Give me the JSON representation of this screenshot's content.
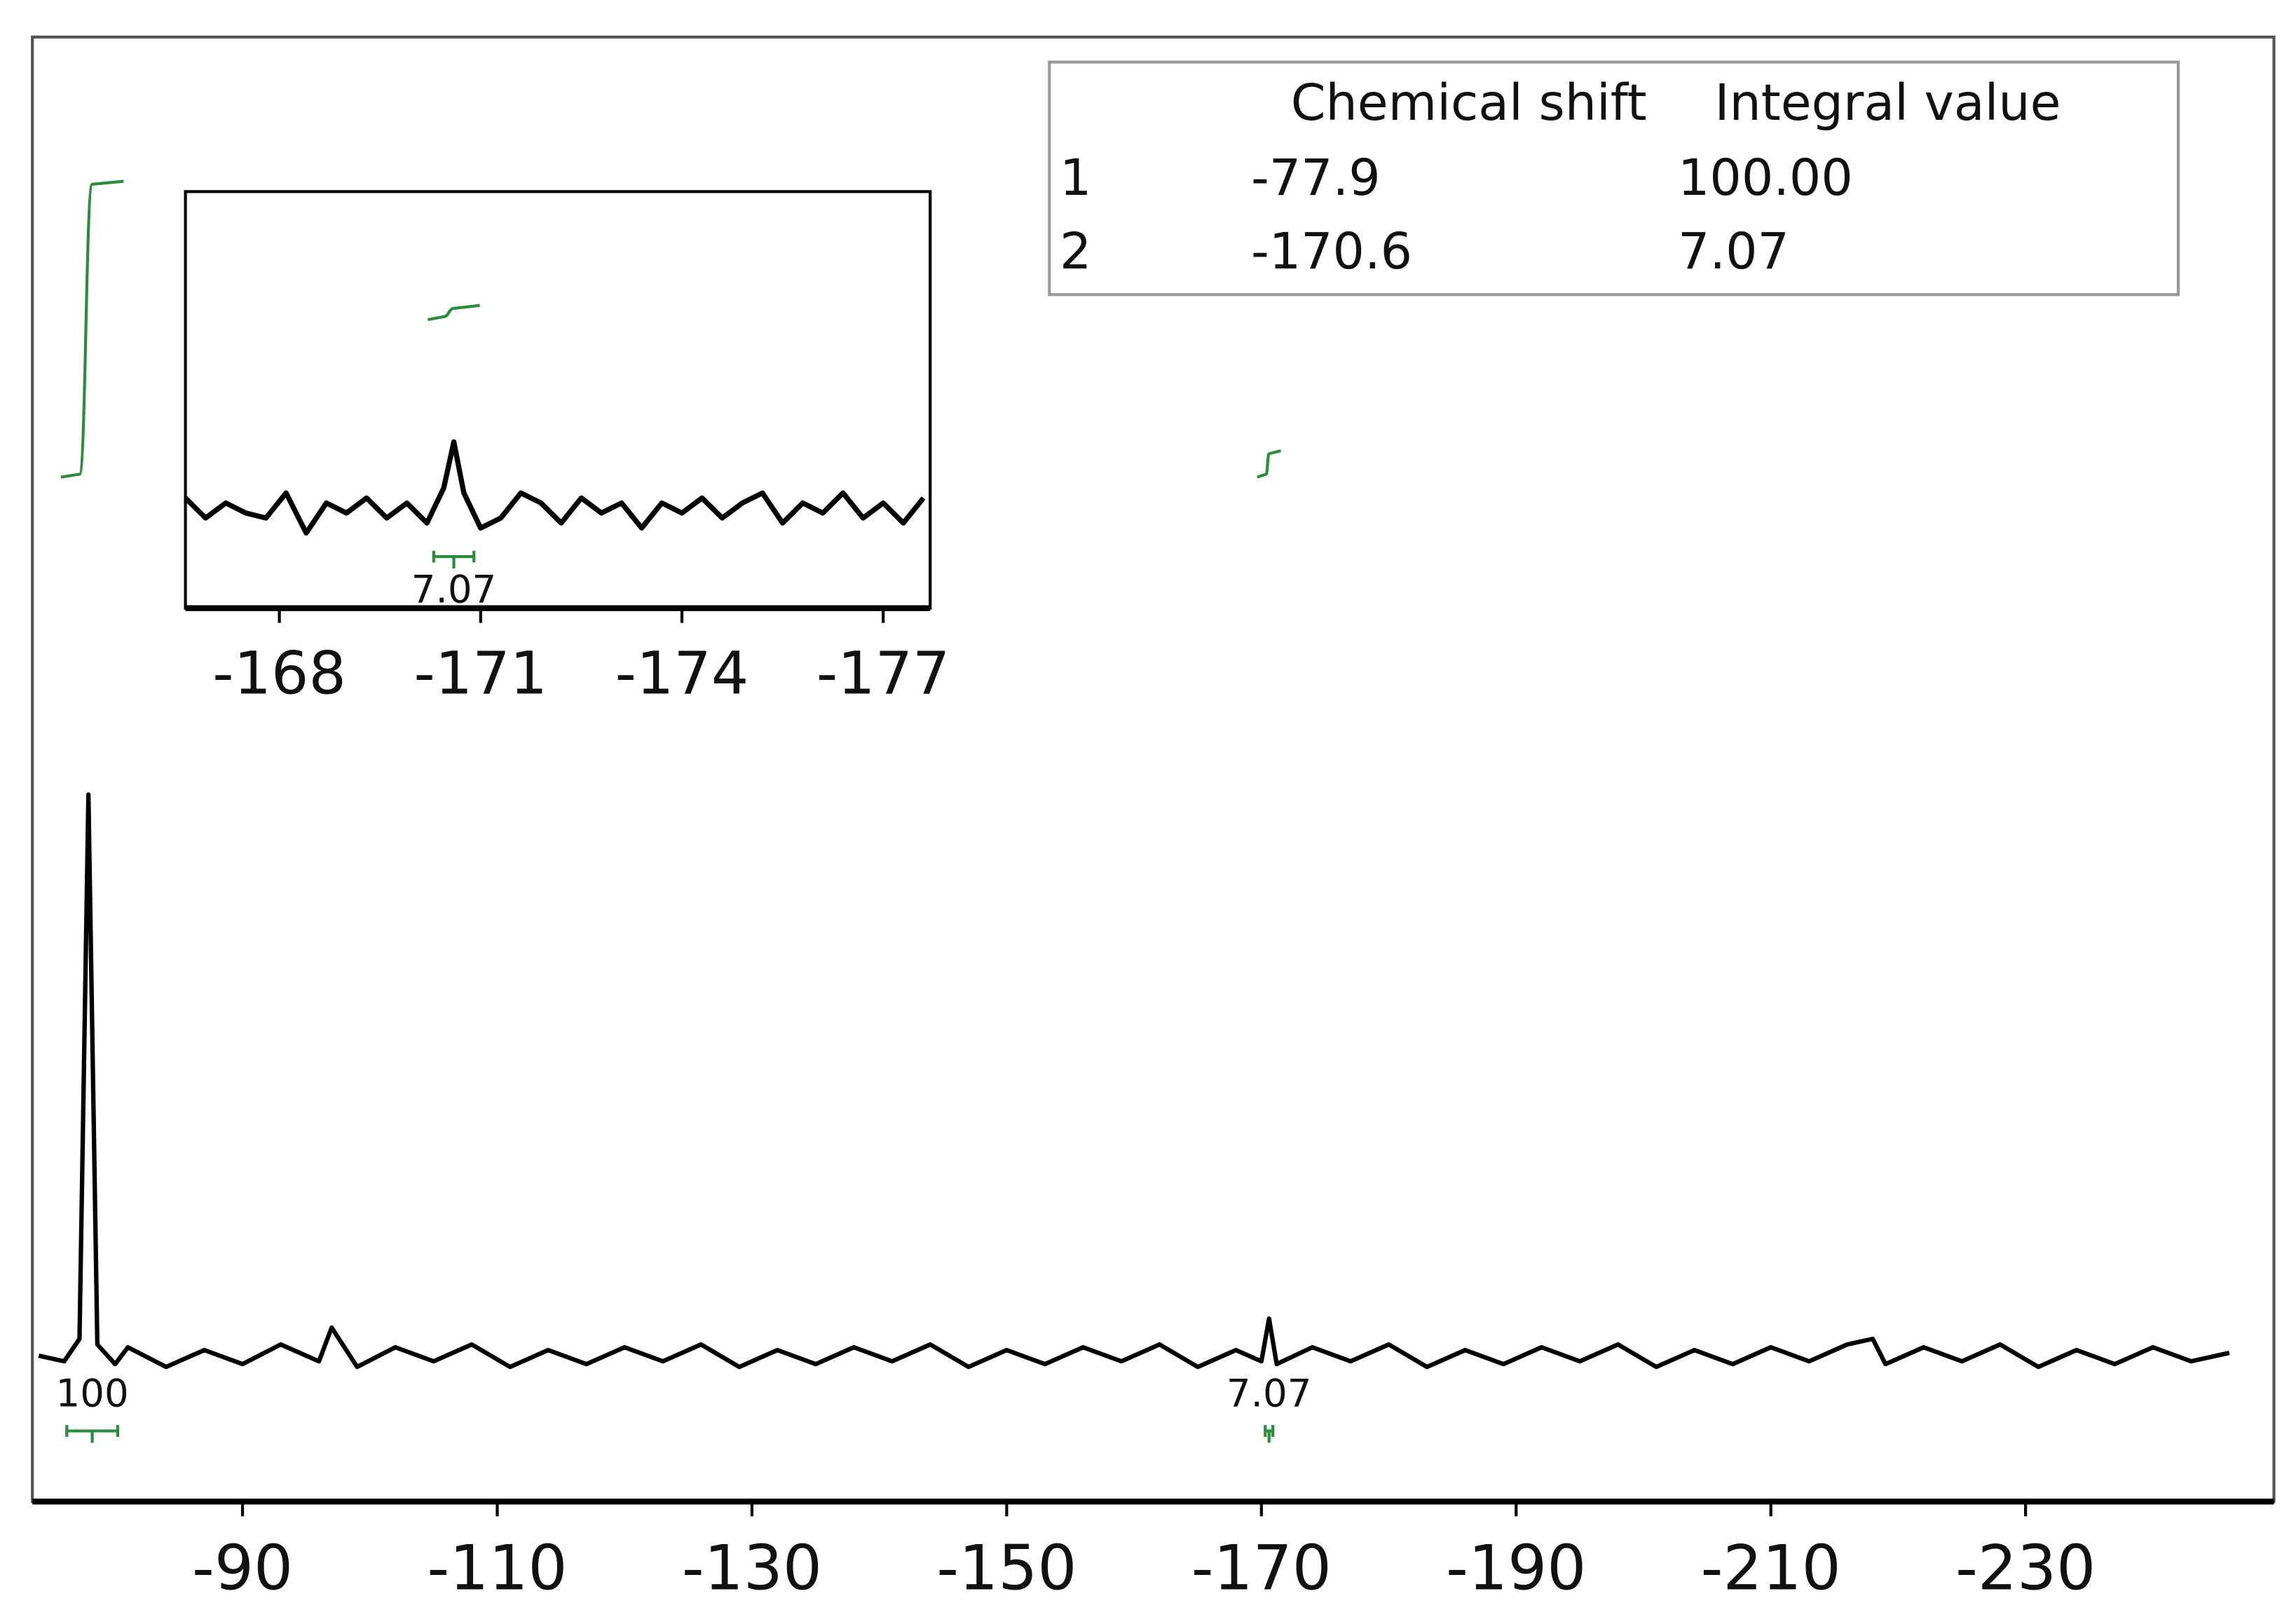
{
  "table": {
    "headers": [
      "Chemical shift",
      "Integral value"
    ],
    "rows": [
      [
        "1",
        "-77.9",
        "100.00"
      ],
      [
        "2",
        "-170.6",
        "7.07"
      ]
    ]
  },
  "chart_data": [
    {
      "type": "line",
      "color": "#000000",
      "xlim": [
        -73.5,
        -249.5
      ],
      "ylim": [
        -26,
        235
      ],
      "xticks": [
        -90,
        -110,
        -130,
        -150,
        -170,
        -190,
        -210,
        -230
      ],
      "x": [
        -74,
        -76,
        -77.2,
        -77.9,
        -78.6,
        -80,
        -81,
        -84,
        -87,
        -90,
        -93,
        -96,
        -97,
        -99,
        -102,
        -105,
        -108,
        -111,
        -114,
        -117,
        -120,
        -123,
        -126,
        -129,
        -132,
        -135,
        -138,
        -141,
        -144,
        -147,
        -150,
        -153,
        -156,
        -159,
        -162,
        -165,
        -168,
        -170,
        -170.6,
        -171.2,
        -174,
        -177,
        -180,
        -183,
        -186,
        -189,
        -192,
        -195,
        -198,
        -201,
        -204,
        -207,
        -210,
        -213,
        -216,
        -218,
        -219,
        -222,
        -225,
        -228,
        -231,
        -234,
        -237,
        -240,
        -243,
        -246
      ],
      "values": [
        0,
        -1,
        3,
        100,
        2,
        -1.5,
        1.5,
        -2,
        1,
        -1.5,
        2,
        -1,
        5,
        -2,
        1.5,
        -1,
        2,
        -2,
        1,
        -1.5,
        1.5,
        -1,
        2,
        -2,
        1,
        -1.5,
        1.5,
        -1,
        2,
        -2,
        1,
        -1.5,
        1.5,
        -1,
        2,
        -2,
        1,
        -1,
        6.6,
        -1.5,
        1.5,
        -1,
        2,
        -2,
        1,
        -1.5,
        1.5,
        -1,
        2,
        -2,
        1,
        -1.5,
        1.5,
        -1,
        2,
        3,
        -1.5,
        1.5,
        -1,
        2,
        -2,
        1,
        -1.5,
        1.5,
        -1,
        0.5
      ],
      "integrals": {
        "color": "#2e8b3e",
        "regions": [
          [
            -76.2,
            -80.2
          ],
          [
            -170.3,
            -170.9
          ]
        ],
        "values": [
          100,
          7.07
        ],
        "value_labels": [
          "100",
          "7.07"
        ]
      }
    },
    {
      "type": "line",
      "color": "#000000",
      "xlim": [
        -166.6,
        -177.7
      ],
      "ylim": [
        -10,
        31.6
      ],
      "xticks": [
        -168,
        -171,
        -174,
        -177
      ],
      "x": [
        -166.6,
        -166.9,
        -167.2,
        -167.5,
        -167.8,
        -168.1,
        -168.4,
        -168.7,
        -169.0,
        -169.3,
        -169.6,
        -169.9,
        -170.2,
        -170.45,
        -170.6,
        -170.75,
        -171.0,
        -171.3,
        -171.6,
        -171.9,
        -172.2,
        -172.5,
        -172.8,
        -173.1,
        -173.4,
        -173.7,
        -174.0,
        -174.3,
        -174.6,
        -174.9,
        -175.2,
        -175.5,
        -175.8,
        -176.1,
        -176.4,
        -176.7,
        -177.0,
        -177.3,
        -177.6
      ],
      "values": [
        1,
        -1,
        0.5,
        -0.5,
        -1,
        1.5,
        -2.5,
        0.5,
        -0.5,
        1,
        -1,
        0.5,
        -1.5,
        2,
        6.6,
        1.5,
        -2,
        -1,
        1.5,
        0.5,
        -1.5,
        1,
        -0.5,
        0.5,
        -2,
        0.5,
        -0.5,
        1,
        -1,
        0.5,
        1.5,
        -1.5,
        0.5,
        -0.5,
        1.5,
        -1,
        0.5,
        -1.5,
        1
      ]
    }
  ]
}
